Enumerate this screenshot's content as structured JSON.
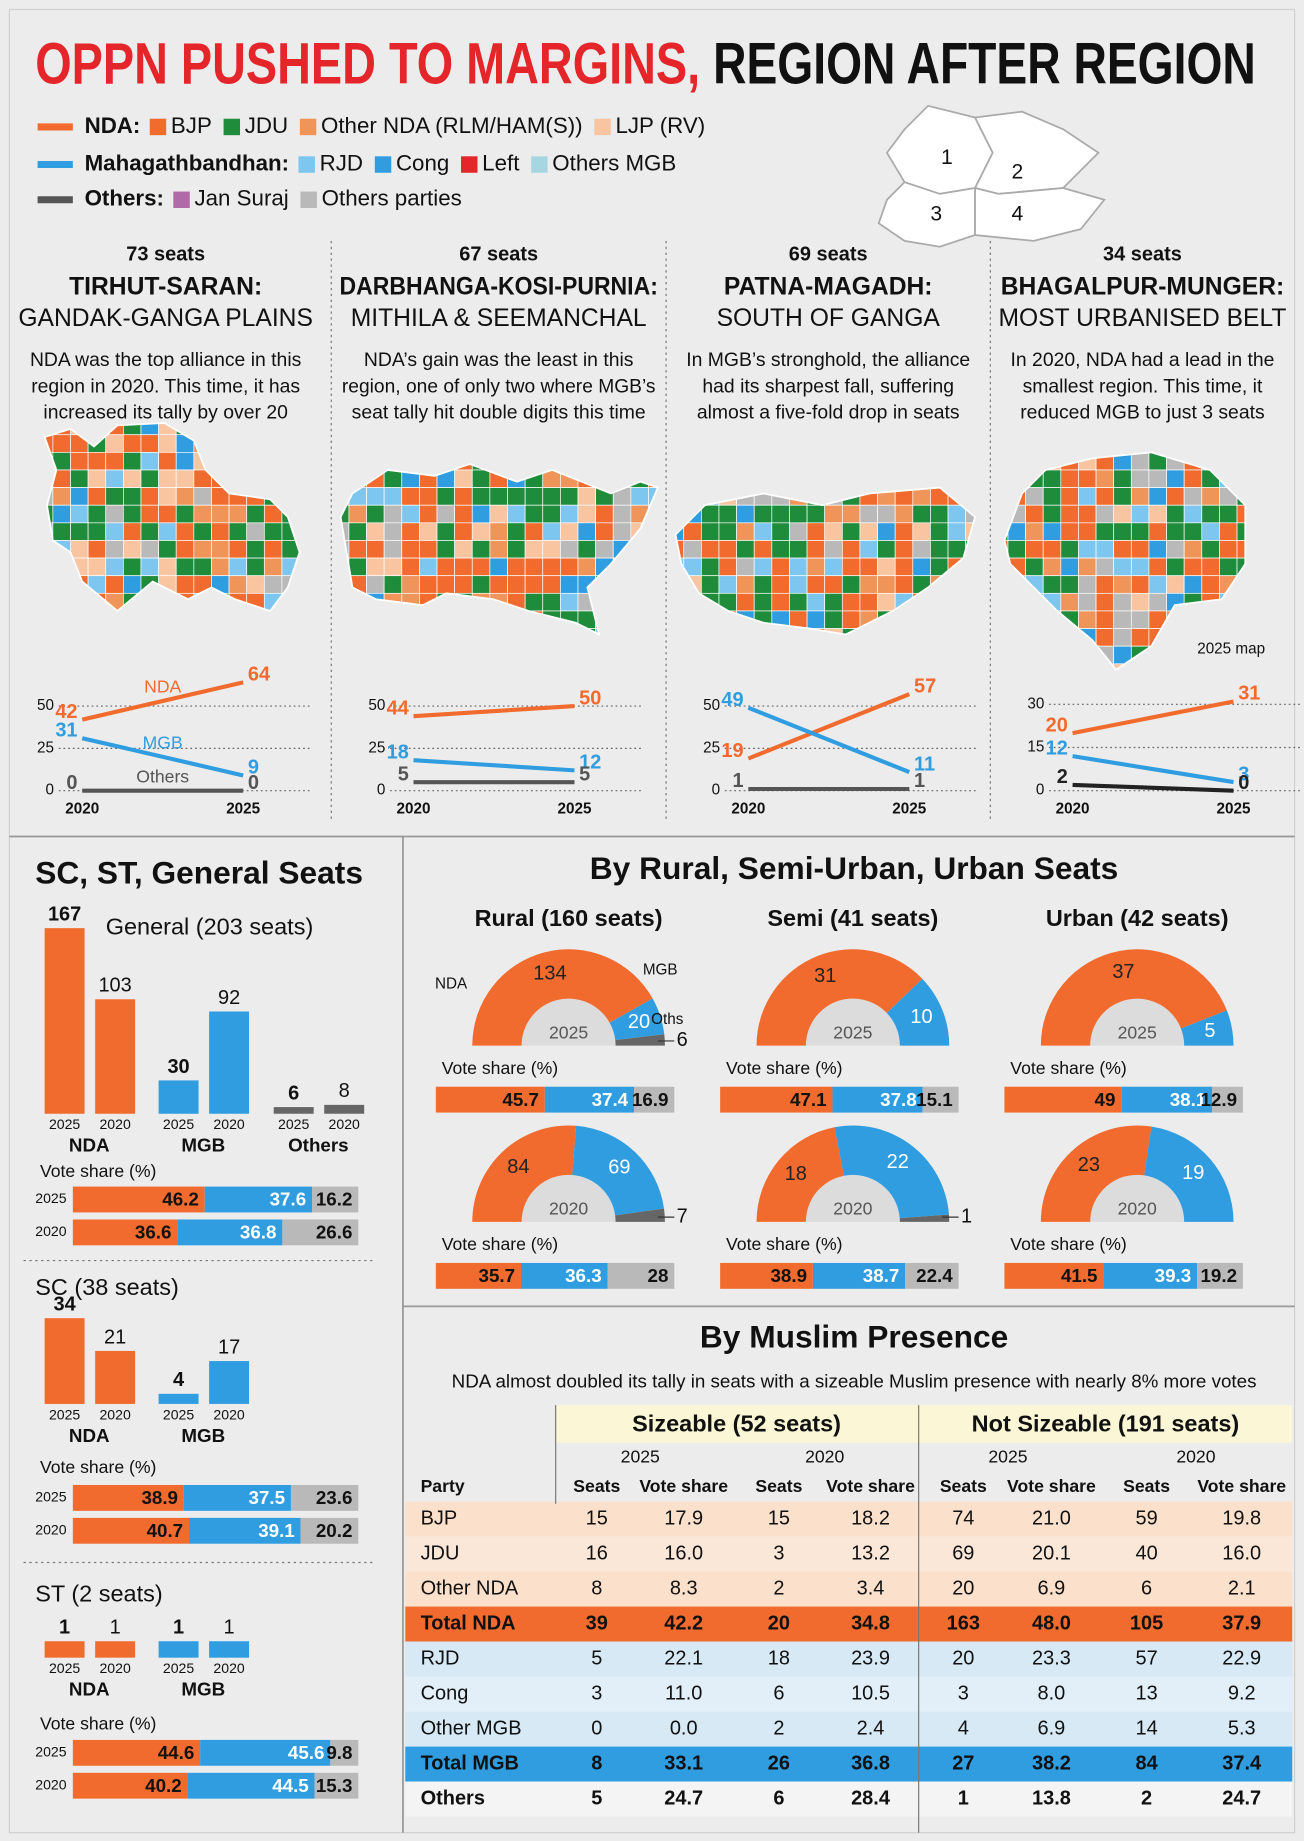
{
  "title": {
    "part1": "OPPN PUSHED TO MARGINS,",
    "part2": "REGION AFTER REGION"
  },
  "legend": [
    {
      "label": "NDA:",
      "color": "#f26b2e",
      "items": [
        {
          "name": "BJP",
          "color": "#f26b2e"
        },
        {
          "name": "JDU",
          "color": "#1f8c3b"
        },
        {
          "name": "Other NDA (RLM/HAM(S))",
          "color": "#f0955a"
        },
        {
          "name": "LJP (RV)",
          "color": "#f9c4a0"
        }
      ]
    },
    {
      "label": "Mahagathbandhan:",
      "color": "#2f9de0",
      "items": [
        {
          "name": "RJD",
          "color": "#7cc6f0"
        },
        {
          "name": "Cong",
          "color": "#2f9de0"
        },
        {
          "name": "Left",
          "color": "#e4252a"
        },
        {
          "name": "Others MGB",
          "color": "#a6d7e0"
        }
      ]
    },
    {
      "label": "Others:",
      "color": "#555555",
      "items": [
        {
          "name": "Jan Suraj",
          "color": "#b06aa8"
        },
        {
          "name": "Others parties",
          "color": "#b9b9b9"
        }
      ]
    }
  ],
  "map_labels": [
    "1",
    "2",
    "3",
    "4"
  ],
  "regions": [
    {
      "seats": "73 seats",
      "name": "TIRHUT-SARAN:",
      "subtitle": "GANDAK-GANGA PLAINS",
      "text": [
        "NDA was the top alliance in this",
        "region in 2020. This time, it has",
        "increased its tally by over 20"
      ],
      "chart": {
        "type": "line",
        "x": [
          "2020",
          "2025"
        ],
        "ylim": [
          0,
          68
        ],
        "yticks": [
          0,
          25,
          50
        ],
        "series": [
          {
            "name": "NDA",
            "color": "#f26b2e",
            "values": [
              42,
              64
            ]
          },
          {
            "name": "MGB",
            "color": "#2f9de0",
            "values": [
              31,
              9
            ]
          },
          {
            "name": "Others",
            "color": "#555555",
            "values": [
              0,
              0
            ]
          }
        ]
      }
    },
    {
      "seats": "67 seats",
      "name": "DARBHANGA-KOSI-PURNIA:",
      "subtitle": "MITHILA & SEEMANCHAL",
      "text": [
        "NDA’s gain was the least in this",
        "region, one of only two where MGB’s",
        "seat tally hit double digits this time"
      ],
      "chart": {
        "type": "line",
        "x": [
          "2020",
          "2025"
        ],
        "ylim": [
          0,
          68
        ],
        "yticks": [
          0,
          25,
          50
        ],
        "series": [
          {
            "color": "#f26b2e",
            "values": [
              44,
              50
            ]
          },
          {
            "color": "#2f9de0",
            "values": [
              18,
              12
            ]
          },
          {
            "color": "#555555",
            "values": [
              5,
              5
            ]
          }
        ]
      }
    },
    {
      "seats": "69 seats",
      "name": "PATNA-MAGADH:",
      "subtitle": "SOUTH OF GANGA",
      "text": [
        "In MGB’s stronghold, the alliance",
        "had its sharpest fall, suffering",
        "almost a five-fold drop in seats"
      ],
      "chart": {
        "type": "line",
        "x": [
          "2020",
          "2025"
        ],
        "ylim": [
          0,
          68
        ],
        "yticks": [
          0,
          25,
          50
        ],
        "series": [
          {
            "color": "#f26b2e",
            "values": [
              19,
              57
            ]
          },
          {
            "color": "#2f9de0",
            "values": [
              49,
              11
            ]
          },
          {
            "color": "#555555",
            "values": [
              1,
              1
            ]
          }
        ]
      }
    },
    {
      "seats": "34 seats",
      "name": "BHAGALPUR-MUNGER:",
      "subtitle": "MOST URBANISED BELT",
      "text": [
        "In 2020, NDA had a lead in the",
        "smallest region. This time, it",
        "reduced MGB to just 3 seats"
      ],
      "map_note": "2025 map",
      "chart": {
        "type": "line",
        "x": [
          "2020",
          "2025"
        ],
        "ylim": [
          0,
          40
        ],
        "yticks": [
          0,
          15,
          30
        ],
        "series": [
          {
            "color": "#f26b2e",
            "values": [
              20,
              31
            ]
          },
          {
            "color": "#2f9de0",
            "values": [
              12,
              3
            ]
          },
          {
            "color": "#222222",
            "values": [
              2,
              0
            ]
          }
        ]
      }
    }
  ],
  "alliance_colors": [
    "#f26b2e",
    "#2f9de0",
    "#666666"
  ],
  "vote_share_colors": [
    "#f26b2e",
    "#2f9de0",
    "#b9b9b9"
  ],
  "reservation": {
    "title": "SC, ST, General Seats",
    "groups": [
      {
        "label": "General (203 seats)",
        "years": [
          "2025",
          "2020"
        ],
        "parties": [
          "NDA",
          "MGB",
          "Others"
        ],
        "seats": [
          [
            167,
            103
          ],
          [
            30,
            92
          ],
          [
            6,
            8
          ]
        ],
        "vote_share_label": "Vote share (%)",
        "vote_share": [
          {
            "year": "2025",
            "values": [
              46.2,
              37.6,
              16.2
            ]
          },
          {
            "year": "2020",
            "values": [
              36.6,
              36.8,
              26.6
            ]
          }
        ]
      },
      {
        "label": "SC (38 seats)",
        "years": [
          "2025",
          "2020"
        ],
        "parties": [
          "NDA",
          "MGB"
        ],
        "seats": [
          [
            34,
            21
          ],
          [
            4,
            17
          ]
        ],
        "vote_share_label": "Vote share (%)",
        "vote_share": [
          {
            "year": "2025",
            "values": [
              38.9,
              37.5,
              23.6
            ]
          },
          {
            "year": "2020",
            "values": [
              40.7,
              39.1,
              20.2
            ]
          }
        ]
      },
      {
        "label": "ST (2 seats)",
        "years": [
          "2025",
          "2020"
        ],
        "parties": [
          "NDA",
          "MGB"
        ],
        "seats": [
          [
            1,
            1
          ],
          [
            1,
            1
          ]
        ],
        "vote_share_label": "Vote share (%)",
        "vote_share": [
          {
            "year": "2025",
            "values": [
              44.6,
              45.6,
              9.8
            ]
          },
          {
            "year": "2020",
            "values": [
              40.2,
              44.5,
              15.3
            ]
          }
        ]
      }
    ]
  },
  "settlement": {
    "title": "By Rural, Semi-Urban, Urban Seats",
    "columns": [
      {
        "label": "Rural (160 seats)",
        "donuts": [
          {
            "year": "2025",
            "values": [
              134,
              20,
              6
            ],
            "names": [
              "NDA",
              "MGB",
              "Oths"
            ],
            "vote_share_label": "Vote share (%)",
            "vote_share": [
              45.7,
              37.4,
              16.9
            ]
          },
          {
            "year": "2020",
            "values": [
              84,
              69,
              7
            ],
            "vote_share_label": "Vote share (%)",
            "vote_share": [
              35.7,
              36.3,
              28
            ]
          }
        ]
      },
      {
        "label": "Semi (41 seats)",
        "donuts": [
          {
            "year": "2025",
            "values": [
              31,
              10
            ],
            "vote_share_label": "Vote share (%)",
            "vote_share": [
              47.1,
              37.8,
              15.1
            ]
          },
          {
            "year": "2020",
            "values": [
              18,
              22,
              1
            ],
            "vote_share_label": "Vote share (%)",
            "vote_share": [
              38.9,
              38.7,
              22.4
            ]
          }
        ]
      },
      {
        "label": "Urban (42 seats)",
        "donuts": [
          {
            "year": "2025",
            "values": [
              37,
              5
            ],
            "vote_share_label": "Vote share (%)",
            "vote_share": [
              49,
              38.1,
              12.9
            ]
          },
          {
            "year": "2020",
            "values": [
              23,
              19
            ],
            "vote_share_label": "Vote share (%)",
            "vote_share": [
              41.5,
              39.3,
              19.2
            ]
          }
        ]
      }
    ]
  },
  "muslim": {
    "title": "By Muslim Presence",
    "subtitle": "NDA almost doubled its tally in seats with a sizeable Muslim presence with nearly 8% more votes",
    "groups": [
      "Sizeable (52 seats)",
      "Not Sizeable (191 seats)"
    ],
    "years": [
      "2025",
      "2020",
      "2025",
      "2020"
    ],
    "columns": [
      "Party",
      "Seats",
      "Vote share",
      "Seats",
      "Vote share",
      "Seats",
      "Vote share",
      "Seats",
      "Vote share"
    ],
    "rows": [
      [
        "BJP",
        "15",
        "17.9",
        "15",
        "18.2",
        "74",
        "21.0",
        "59",
        "19.8"
      ],
      [
        "JDU",
        "16",
        "16.0",
        "3",
        "13.2",
        "69",
        "20.1",
        "40",
        "16.0"
      ],
      [
        "Other NDA",
        "8",
        "8.3",
        "2",
        "3.4",
        "20",
        "6.9",
        "6",
        "2.1"
      ],
      [
        "Total NDA",
        "39",
        "42.2",
        "20",
        "34.8",
        "163",
        "48.0",
        "105",
        "37.9"
      ],
      [
        "RJD",
        "5",
        "22.1",
        "18",
        "23.9",
        "20",
        "23.3",
        "57",
        "22.9"
      ],
      [
        "Cong",
        "3",
        "11.0",
        "6",
        "10.5",
        "3",
        "8.0",
        "13",
        "9.2"
      ],
      [
        "Other MGB",
        "0",
        "0.0",
        "2",
        "2.4",
        "4",
        "6.9",
        "14",
        "5.3"
      ],
      [
        "Total MGB",
        "8",
        "33.1",
        "26",
        "36.8",
        "27",
        "38.2",
        "84",
        "37.4"
      ],
      [
        "Others",
        "5",
        "24.7",
        "6",
        "28.4",
        "1",
        "13.8",
        "2",
        "24.7"
      ]
    ]
  }
}
